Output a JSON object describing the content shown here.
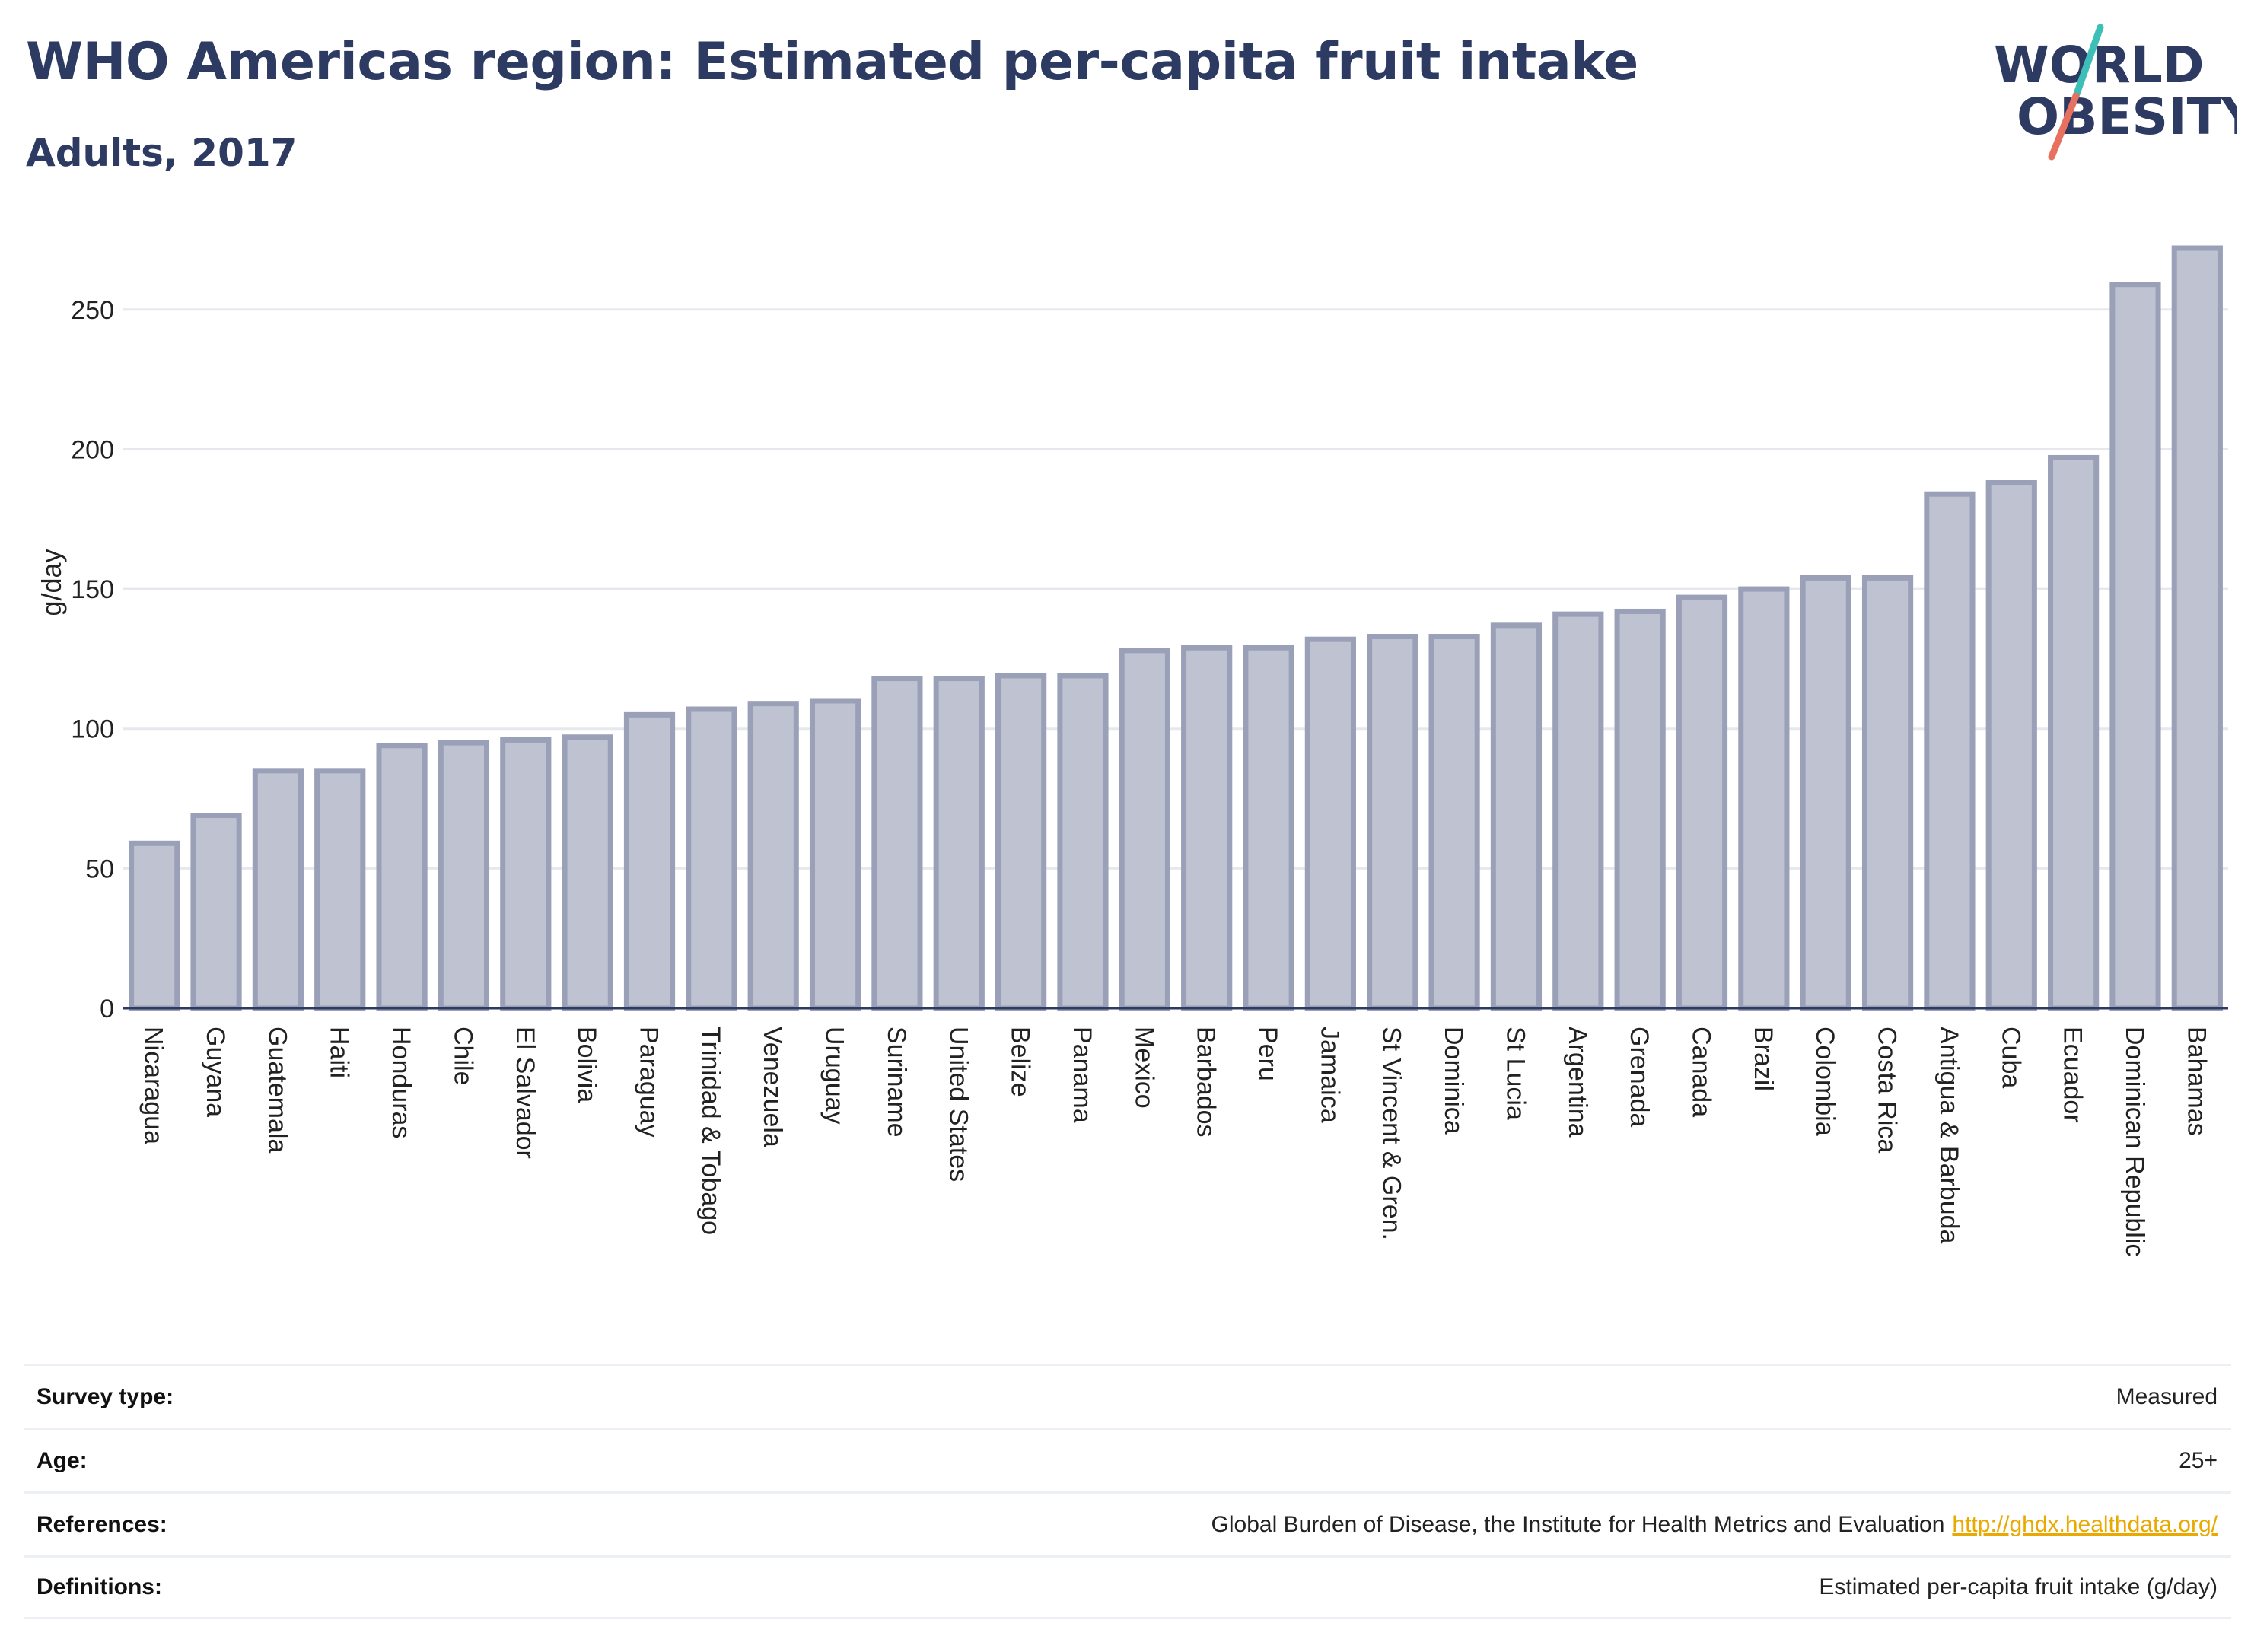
{
  "header": {
    "title": "WHO Americas region: Estimated per-capita fruit intake",
    "subtitle": "Adults, 2017"
  },
  "logo": {
    "line1": "WORLD",
    "line2": "OBESITY",
    "accent_teal": "#3dbfb8",
    "accent_coral": "#e8705f",
    "text_color": "#2d3a62"
  },
  "chart_data": {
    "type": "bar",
    "ylabel": "g/day",
    "xlabel": "",
    "ylim": [
      0,
      272
    ],
    "yticks": [
      0,
      50,
      100,
      150,
      200,
      250
    ],
    "grid": "horizontal",
    "bar_fill": "#bfc3d1",
    "bar_stroke": "#9aa0b7",
    "categories": [
      "Nicaragua",
      "Guyana",
      "Guatemala",
      "Haiti",
      "Honduras",
      "Chile",
      "El Salvador",
      "Bolivia",
      "Paraguay",
      "Trinidad & Tobago",
      "Venezuela",
      "Uruguay",
      "Suriname",
      "United States",
      "Belize",
      "Panama",
      "Mexico",
      "Barbados",
      "Peru",
      "Jamaica",
      "St Vincent & Gren.",
      "Dominica",
      "St Lucia",
      "Argentina",
      "Grenada",
      "Canada",
      "Brazil",
      "Colombia",
      "Costa Rica",
      "Antigua & Barbuda",
      "Cuba",
      "Ecuador",
      "Dominican Republic",
      "Bahamas"
    ],
    "values": [
      59,
      69,
      85,
      85,
      94,
      95,
      96,
      97,
      105,
      107,
      109,
      110,
      118,
      118,
      119,
      119,
      128,
      129,
      129,
      132,
      133,
      133,
      137,
      141,
      142,
      147,
      150,
      154,
      154,
      184,
      188,
      197,
      259,
      272
    ]
  },
  "info": {
    "survey_type": {
      "label": "Survey type:",
      "value": "Measured"
    },
    "age": {
      "label": "Age:",
      "value": "25+"
    },
    "references": {
      "label": "References:",
      "value": "Global Burden of Disease, the Institute for Health Metrics and Evaluation",
      "link": "http://ghdx.healthdata.org/"
    },
    "definitions": {
      "label": "Definitions:",
      "value": "Estimated per-capita fruit intake (g/day)"
    }
  }
}
